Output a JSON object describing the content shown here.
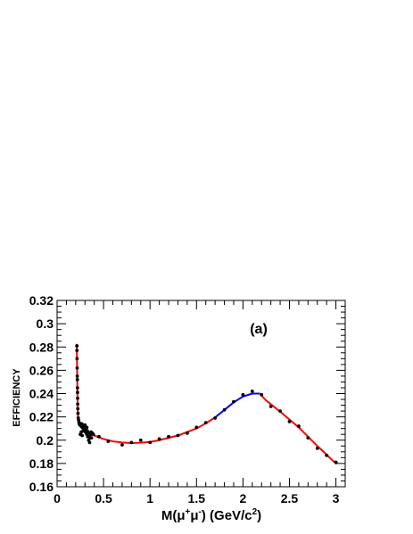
{
  "chart_data": {
    "type": "scatter",
    "title": "",
    "panel_label": "(a)",
    "xlabel": {
      "text": "M(μ⁺μ⁻) (GeV/c²)",
      "base": "M(μ",
      "sup1": "+",
      "mid": "μ",
      "sup2": "-",
      "tail": ") (GeV/c",
      "sup3": "2",
      "end": ")"
    },
    "ylabel": "EFFICIENCY",
    "xlim": [
      0,
      3.1
    ],
    "ylim": [
      0.16,
      0.32
    ],
    "xticks": [
      0,
      0.5,
      1,
      1.5,
      2,
      2.5,
      3
    ],
    "xtick_labels": [
      "0",
      "0.5",
      "1",
      "1.5",
      "2",
      "2.5",
      "3"
    ],
    "yticks": [
      0.16,
      0.18,
      0.2,
      0.22,
      0.24,
      0.26,
      0.28,
      0.3,
      0.32
    ],
    "ytick_labels": [
      "0.16",
      "0.18",
      "0.2",
      "0.22",
      "0.24",
      "0.26",
      "0.28",
      "0.3",
      "0.32"
    ],
    "grid": false,
    "colors": {
      "points": "#000000",
      "fit_red": "#ff0000",
      "fit_blue": "#0000ff",
      "frame": "#000000"
    },
    "points": [
      [
        0.213,
        0.281
      ],
      [
        0.214,
        0.277
      ],
      [
        0.215,
        0.27
      ],
      [
        0.216,
        0.262
      ],
      [
        0.217,
        0.255
      ],
      [
        0.218,
        0.252
      ],
      [
        0.219,
        0.245
      ],
      [
        0.22,
        0.241
      ],
      [
        0.221,
        0.236
      ],
      [
        0.222,
        0.231
      ],
      [
        0.223,
        0.227
      ],
      [
        0.225,
        0.223
      ],
      [
        0.228,
        0.219
      ],
      [
        0.232,
        0.217
      ],
      [
        0.236,
        0.215
      ],
      [
        0.24,
        0.214
      ],
      [
        0.245,
        0.213
      ],
      [
        0.25,
        0.214
      ],
      [
        0.255,
        0.213
      ],
      [
        0.26,
        0.212
      ],
      [
        0.265,
        0.214
      ],
      [
        0.27,
        0.211
      ],
      [
        0.275,
        0.212
      ],
      [
        0.28,
        0.213
      ],
      [
        0.285,
        0.21
      ],
      [
        0.29,
        0.208
      ],
      [
        0.295,
        0.211
      ],
      [
        0.3,
        0.209
      ],
      [
        0.305,
        0.207
      ],
      [
        0.31,
        0.21
      ],
      [
        0.315,
        0.206
      ],
      [
        0.32,
        0.205
      ],
      [
        0.325,
        0.208
      ],
      [
        0.33,
        0.203
      ],
      [
        0.335,
        0.206
      ],
      [
        0.34,
        0.2
      ],
      [
        0.345,
        0.204
      ],
      [
        0.35,
        0.198
      ],
      [
        0.355,
        0.202
      ],
      [
        0.36,
        0.205
      ],
      [
        0.365,
        0.207
      ],
      [
        0.37,
        0.202
      ],
      [
        0.38,
        0.206
      ],
      [
        0.39,
        0.205
      ],
      [
        0.25,
        0.205
      ],
      [
        0.26,
        0.207
      ],
      [
        0.27,
        0.204
      ],
      [
        0.28,
        0.208
      ],
      [
        0.3,
        0.213
      ],
      [
        0.32,
        0.211
      ],
      [
        0.45,
        0.203
      ],
      [
        0.55,
        0.199
      ],
      [
        0.7,
        0.196
      ],
      [
        0.8,
        0.198
      ],
      [
        0.9,
        0.2
      ],
      [
        1.0,
        0.198
      ],
      [
        1.1,
        0.201
      ],
      [
        1.2,
        0.203
      ],
      [
        1.3,
        0.204
      ],
      [
        1.4,
        0.206
      ],
      [
        1.5,
        0.211
      ],
      [
        1.6,
        0.215
      ],
      [
        1.7,
        0.219
      ],
      [
        1.8,
        0.226
      ],
      [
        1.9,
        0.233
      ],
      [
        2.0,
        0.239
      ],
      [
        2.1,
        0.242
      ],
      [
        2.2,
        0.239
      ],
      [
        2.3,
        0.229
      ],
      [
        2.4,
        0.225
      ],
      [
        2.5,
        0.216
      ],
      [
        2.6,
        0.212
      ],
      [
        2.7,
        0.202
      ],
      [
        2.8,
        0.193
      ],
      [
        2.9,
        0.187
      ],
      [
        3.0,
        0.181
      ]
    ],
    "fit_segments": [
      {
        "color": "red",
        "points": [
          [
            0.211,
            0.282
          ],
          [
            0.213,
            0.274
          ],
          [
            0.215,
            0.262
          ],
          [
            0.217,
            0.249
          ],
          [
            0.219,
            0.239
          ],
          [
            0.221,
            0.231
          ],
          [
            0.223,
            0.225
          ],
          [
            0.226,
            0.22
          ],
          [
            0.23,
            0.217
          ],
          [
            0.236,
            0.215
          ]
        ]
      },
      {
        "color": "blue",
        "points": [
          [
            0.236,
            0.215
          ],
          [
            0.26,
            0.213
          ],
          [
            0.3,
            0.21
          ],
          [
            0.34,
            0.207
          ],
          [
            0.38,
            0.205
          ],
          [
            0.4,
            0.204
          ]
        ]
      },
      {
        "color": "red",
        "points": [
          [
            0.4,
            0.204
          ],
          [
            0.5,
            0.201
          ],
          [
            0.6,
            0.199
          ],
          [
            0.7,
            0.198
          ],
          [
            0.8,
            0.1975
          ],
          [
            0.9,
            0.1978
          ],
          [
            1.0,
            0.1985
          ],
          [
            1.1,
            0.2
          ],
          [
            1.2,
            0.202
          ],
          [
            1.3,
            0.204
          ],
          [
            1.4,
            0.207
          ],
          [
            1.5,
            0.21
          ],
          [
            1.6,
            0.2145
          ],
          [
            1.7,
            0.2195
          ]
        ]
      },
      {
        "color": "blue",
        "points": [
          [
            1.7,
            0.2195
          ],
          [
            1.8,
            0.226
          ],
          [
            1.9,
            0.2325
          ],
          [
            2.0,
            0.2375
          ],
          [
            2.1,
            0.24
          ],
          [
            2.18,
            0.24
          ]
        ]
      },
      {
        "color": "red",
        "points": [
          [
            2.18,
            0.24
          ],
          [
            2.25,
            0.234
          ],
          [
            2.4,
            0.2245
          ],
          [
            2.6,
            0.211
          ],
          [
            2.8,
            0.195
          ],
          [
            3.0,
            0.18
          ]
        ]
      }
    ]
  }
}
